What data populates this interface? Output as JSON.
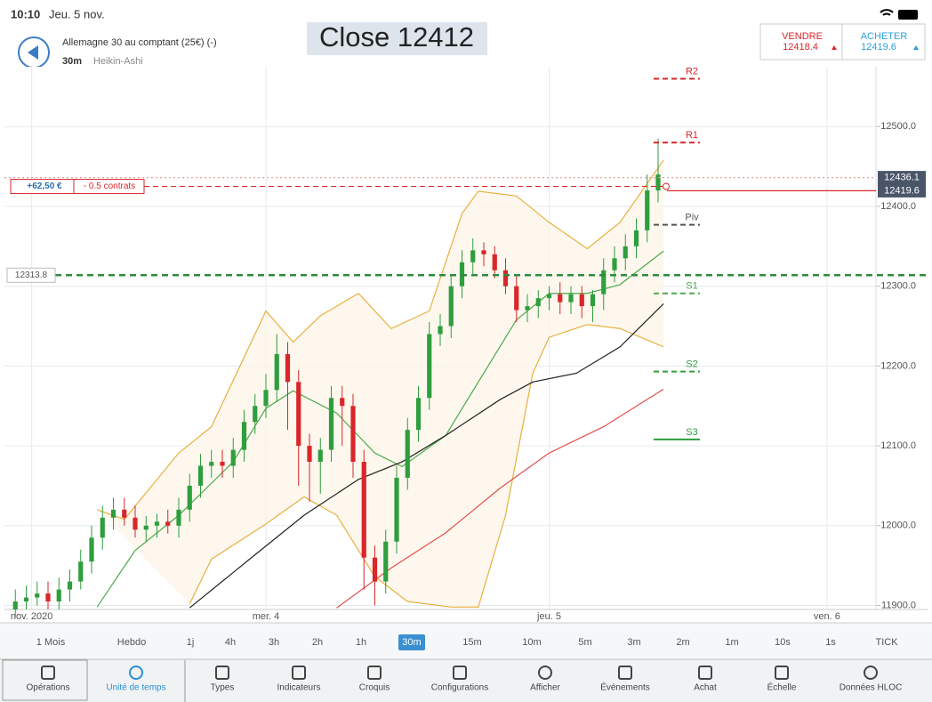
{
  "status": {
    "time": "10:10",
    "date": "Jeu. 5 nov."
  },
  "header": {
    "instrument": "Allemagne 30 au comptant (25€) (-)",
    "interval": "30m",
    "chart_style": "Heikin-Ashi",
    "overlay": "Close 12412",
    "sell_label": "VENDRE",
    "sell_price": "12418.4",
    "buy_label": "ACHETER",
    "buy_price": "12419.6"
  },
  "chart_data": {
    "type": "candlestick",
    "grid": true,
    "xlim": [
      0,
      160
    ],
    "ylim": [
      11895,
      12575
    ],
    "xticks": [
      {
        "value": 5,
        "label": "nov. 2020"
      },
      {
        "value": 48,
        "label": "mer. 4"
      },
      {
        "value": 100,
        "label": "jeu. 5"
      },
      {
        "value": 151,
        "label": "ven. 6"
      }
    ],
    "yticks": [
      {
        "value": 11900,
        "label": "11900.0"
      },
      {
        "value": 12000,
        "label": "12000.0"
      },
      {
        "value": 12100,
        "label": "12100.0"
      },
      {
        "value": 12200,
        "label": "12200.0"
      },
      {
        "value": 12300,
        "label": "12300.0"
      },
      {
        "value": 12400,
        "label": "12400.0"
      },
      {
        "value": 12500,
        "label": "12500.0"
      }
    ],
    "up_color": "#2e9e3e",
    "down_color": "#d9262b",
    "x": [
      2,
      4,
      6,
      8,
      10,
      12,
      14,
      16,
      18,
      20,
      22,
      24,
      26,
      28,
      30,
      32,
      34,
      36,
      38,
      40,
      42,
      44,
      46,
      48,
      50,
      52,
      54,
      56,
      58,
      60,
      62,
      64,
      66,
      68,
      70,
      72,
      74,
      76,
      78,
      80,
      82,
      84,
      86,
      88,
      90,
      92,
      94,
      96,
      98,
      100,
      102,
      104,
      106,
      108,
      110,
      112,
      114,
      116,
      118,
      120
    ],
    "open": [
      11895,
      11905,
      11910,
      11915,
      11905,
      11920,
      11930,
      11955,
      11985,
      12010,
      12020,
      12010,
      11995,
      12000,
      12005,
      12000,
      12020,
      12050,
      12075,
      12080,
      12075,
      12095,
      12130,
      12150,
      12170,
      12215,
      12180,
      12100,
      12080,
      12095,
      12160,
      12150,
      12080,
      11960,
      11930,
      11980,
      12060,
      12120,
      12160,
      12240,
      12250,
      12300,
      12330,
      12345,
      12340,
      12320,
      12300,
      12270,
      12275,
      12285,
      12290,
      12280,
      12290,
      12275,
      12290,
      12320,
      12335,
      12350,
      12370,
      12420
    ],
    "high": [
      11920,
      11925,
      11930,
      11930,
      11935,
      11945,
      11970,
      12000,
      12025,
      12035,
      12035,
      12025,
      12012,
      12015,
      12020,
      12035,
      12065,
      12090,
      12095,
      12095,
      12110,
      12145,
      12165,
      12190,
      12240,
      12230,
      12195,
      12115,
      12110,
      12175,
      12175,
      12165,
      12095,
      11975,
      11995,
      12075,
      12135,
      12175,
      12255,
      12265,
      12315,
      12345,
      12360,
      12355,
      12350,
      12335,
      12315,
      12290,
      12295,
      12300,
      12305,
      12300,
      12300,
      12295,
      12335,
      12350,
      12365,
      12385,
      12440,
      12485
    ],
    "low": [
      11885,
      11895,
      11900,
      11895,
      11895,
      11905,
      11920,
      11940,
      11970,
      11995,
      12000,
      11985,
      11980,
      11985,
      11990,
      11985,
      12005,
      12035,
      12060,
      12060,
      12060,
      12080,
      12115,
      12135,
      12155,
      12120,
      12050,
      12030,
      12040,
      12080,
      12100,
      12060,
      11920,
      11900,
      11915,
      11965,
      12045,
      12105,
      12145,
      12225,
      12235,
      12285,
      12315,
      12325,
      12310,
      12290,
      12255,
      12255,
      12260,
      12270,
      12265,
      12265,
      12260,
      12255,
      12270,
      12305,
      12320,
      12335,
      12355,
      12405
    ],
    "close": [
      11905,
      11910,
      11915,
      11905,
      11920,
      11930,
      11955,
      11985,
      12010,
      12020,
      12010,
      11995,
      12000,
      12005,
      12000,
      12020,
      12050,
      12075,
      12080,
      12075,
      12095,
      12130,
      12150,
      12170,
      12215,
      12180,
      12100,
      12080,
      12095,
      12160,
      12150,
      12080,
      11960,
      11930,
      11980,
      12060,
      12120,
      12160,
      12240,
      12250,
      12300,
      12330,
      12345,
      12340,
      12320,
      12300,
      12270,
      12275,
      12285,
      12290,
      12280,
      12290,
      12275,
      12290,
      12320,
      12335,
      12350,
      12370,
      12420,
      12440
    ],
    "lines": [
      {
        "color": "#e8b040",
        "x": [
          17,
          22,
          32,
          38,
          48,
          53,
          58,
          65,
          71,
          78,
          84,
          87,
          94,
          100,
          107,
          113,
          121
        ],
        "values": [
          12020,
          12008,
          12091,
          12124,
          12269,
          12230,
          12263,
          12291,
          12247,
          12269,
          12391,
          12419,
          12413,
          12380,
          12347,
          12380,
          12458
        ]
      },
      {
        "color": "#e8b040",
        "x": [
          34,
          38,
          48,
          55,
          61,
          65,
          68,
          74,
          82,
          87,
          92,
          97,
          100,
          107,
          113,
          121
        ],
        "values": [
          11902,
          11958,
          12002,
          12036,
          12013,
          11969,
          11936,
          11905,
          11898,
          11898,
          12013,
          12191,
          12236,
          12252,
          12247,
          12224
        ]
      },
      {
        "color": "#4caa4c",
        "x": [
          17,
          24,
          32,
          42,
          48,
          53,
          61,
          68,
          73,
          81,
          87,
          94,
          100,
          107,
          113,
          121
        ],
        "values": [
          11898,
          11969,
          12013,
          12080,
          12147,
          12169,
          12141,
          12091,
          12074,
          12113,
          12180,
          12258,
          12291,
          12291,
          12302,
          12344
        ]
      },
      {
        "color": "#222222",
        "x": [
          34,
          45,
          55,
          65,
          73,
          81,
          91,
          97,
          105,
          113,
          121
        ],
        "values": [
          11897,
          11958,
          12013,
          12058,
          12080,
          12113,
          12158,
          12180,
          12191,
          12224,
          12278
        ]
      },
      {
        "color": "#e05050",
        "x": [
          61,
          71,
          81,
          91,
          100,
          110,
          121
        ],
        "values": [
          11897,
          11947,
          11991,
          12047,
          12091,
          12124,
          12171
        ]
      }
    ],
    "pivots": [
      {
        "name": "R2",
        "value": 12560,
        "color": "#d9262b"
      },
      {
        "name": "R1",
        "value": 12480,
        "color": "#d9262b"
      },
      {
        "name": "Piv",
        "value": 12377,
        "color": "#555555"
      },
      {
        "name": "S1",
        "value": 12291,
        "color": "#4caa4c"
      },
      {
        "name": "S2",
        "value": 12193,
        "color": "#2e9e3e"
      },
      {
        "name": "S3",
        "value": 12108,
        "color": "#2e9e3e"
      }
    ],
    "price_lines": [
      {
        "value": 12436.1,
        "color": "#e8a0a0",
        "style": "dotted",
        "label_side": "right"
      },
      {
        "value": 12419.6,
        "color": "#d9262b",
        "style": "solid",
        "label_side": "right"
      },
      {
        "value": 12313.8,
        "color": "#2e8b3e",
        "style": "dashed",
        "label_side": "left"
      }
    ],
    "position": {
      "value": 12425,
      "profit": "+62,50 €",
      "size": "- 0.5 contrats"
    }
  },
  "timeframes": {
    "items": [
      "1 Mois",
      "Hebdo",
      "1j",
      "4h",
      "3h",
      "2h",
      "1h",
      "30m",
      "15m",
      "10m",
      "5m",
      "3m",
      "2m",
      "1m",
      "10s",
      "1s",
      "TICK"
    ],
    "selected": "30m"
  },
  "tabs": {
    "items": [
      "Opérations",
      "Unité de temps",
      "Types",
      "Indicateurs",
      "Croquis",
      "Configurations",
      "Afficher",
      "Événements",
      "Achat",
      "Échelle",
      "Données HLOC"
    ],
    "active": "Unité de temps"
  }
}
